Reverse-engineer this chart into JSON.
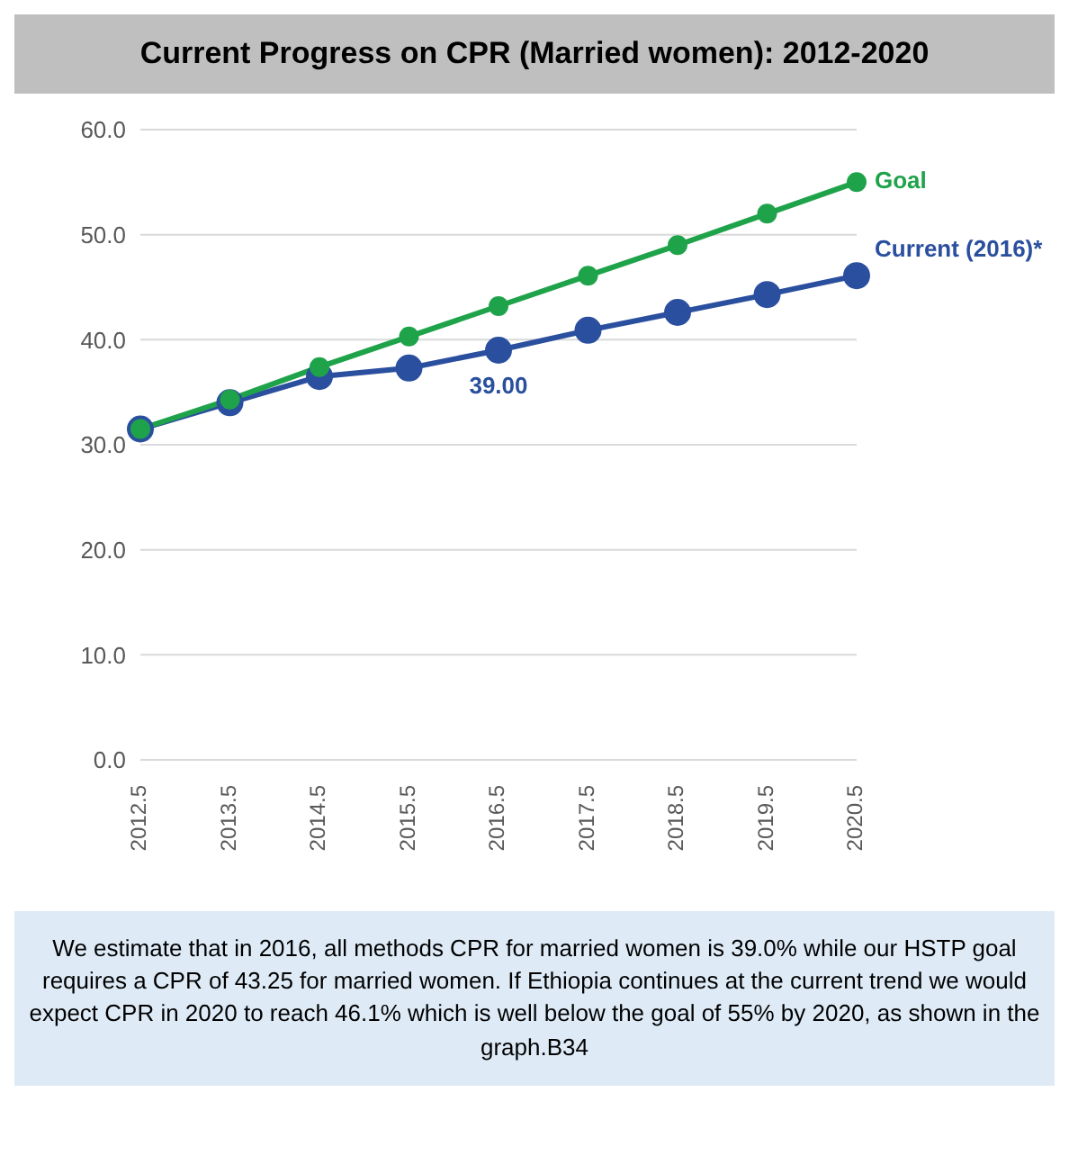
{
  "chart_data": {
    "type": "line",
    "title": "Current Progress on CPR  (Married women): 2012-2020",
    "categories": [
      "2012.5",
      "2013.5",
      "2014.5",
      "2015.5",
      "2016.5",
      "2017.5",
      "2018.5",
      "2019.5",
      "2020.5"
    ],
    "series": [
      {
        "name": "Goal",
        "color": "#1fa34a",
        "values": [
          31.5,
          34.3,
          37.4,
          40.3,
          43.2,
          46.1,
          49.0,
          52.0,
          55.0
        ]
      },
      {
        "name": "Current (2016)*",
        "color": "#2a4f9e",
        "values": [
          31.5,
          34.0,
          36.5,
          37.3,
          39.0,
          40.9,
          42.6,
          44.3,
          46.1
        ],
        "value_labels": [
          null,
          null,
          null,
          null,
          "39.00",
          null,
          null,
          null,
          null
        ]
      }
    ],
    "ylim": [
      0,
      60
    ],
    "yticks": [
      {
        "value": 0,
        "label": "0.0"
      },
      {
        "value": 10,
        "label": "10.0"
      },
      {
        "value": 20,
        "label": "20.0"
      },
      {
        "value": 30,
        "label": "30.0"
      },
      {
        "value": 40,
        "label": "40.0"
      },
      {
        "value": 50,
        "label": "50.0"
      },
      {
        "value": 60,
        "label": "60.0"
      }
    ],
    "grid": "y",
    "legend": false,
    "marker": "circle",
    "line_style": "solid",
    "annotations": [
      "We estimate that in 2016, all methods CPR for married women is 39.0% while our HSTP goal requires a CPR of 43.25 for married women.  If Ethiopia continues at the current trend we would expect CPR in 2020 to reach 46.1% which is well below the goal of 55% by 2020, as shown in the graph.B34"
    ]
  }
}
